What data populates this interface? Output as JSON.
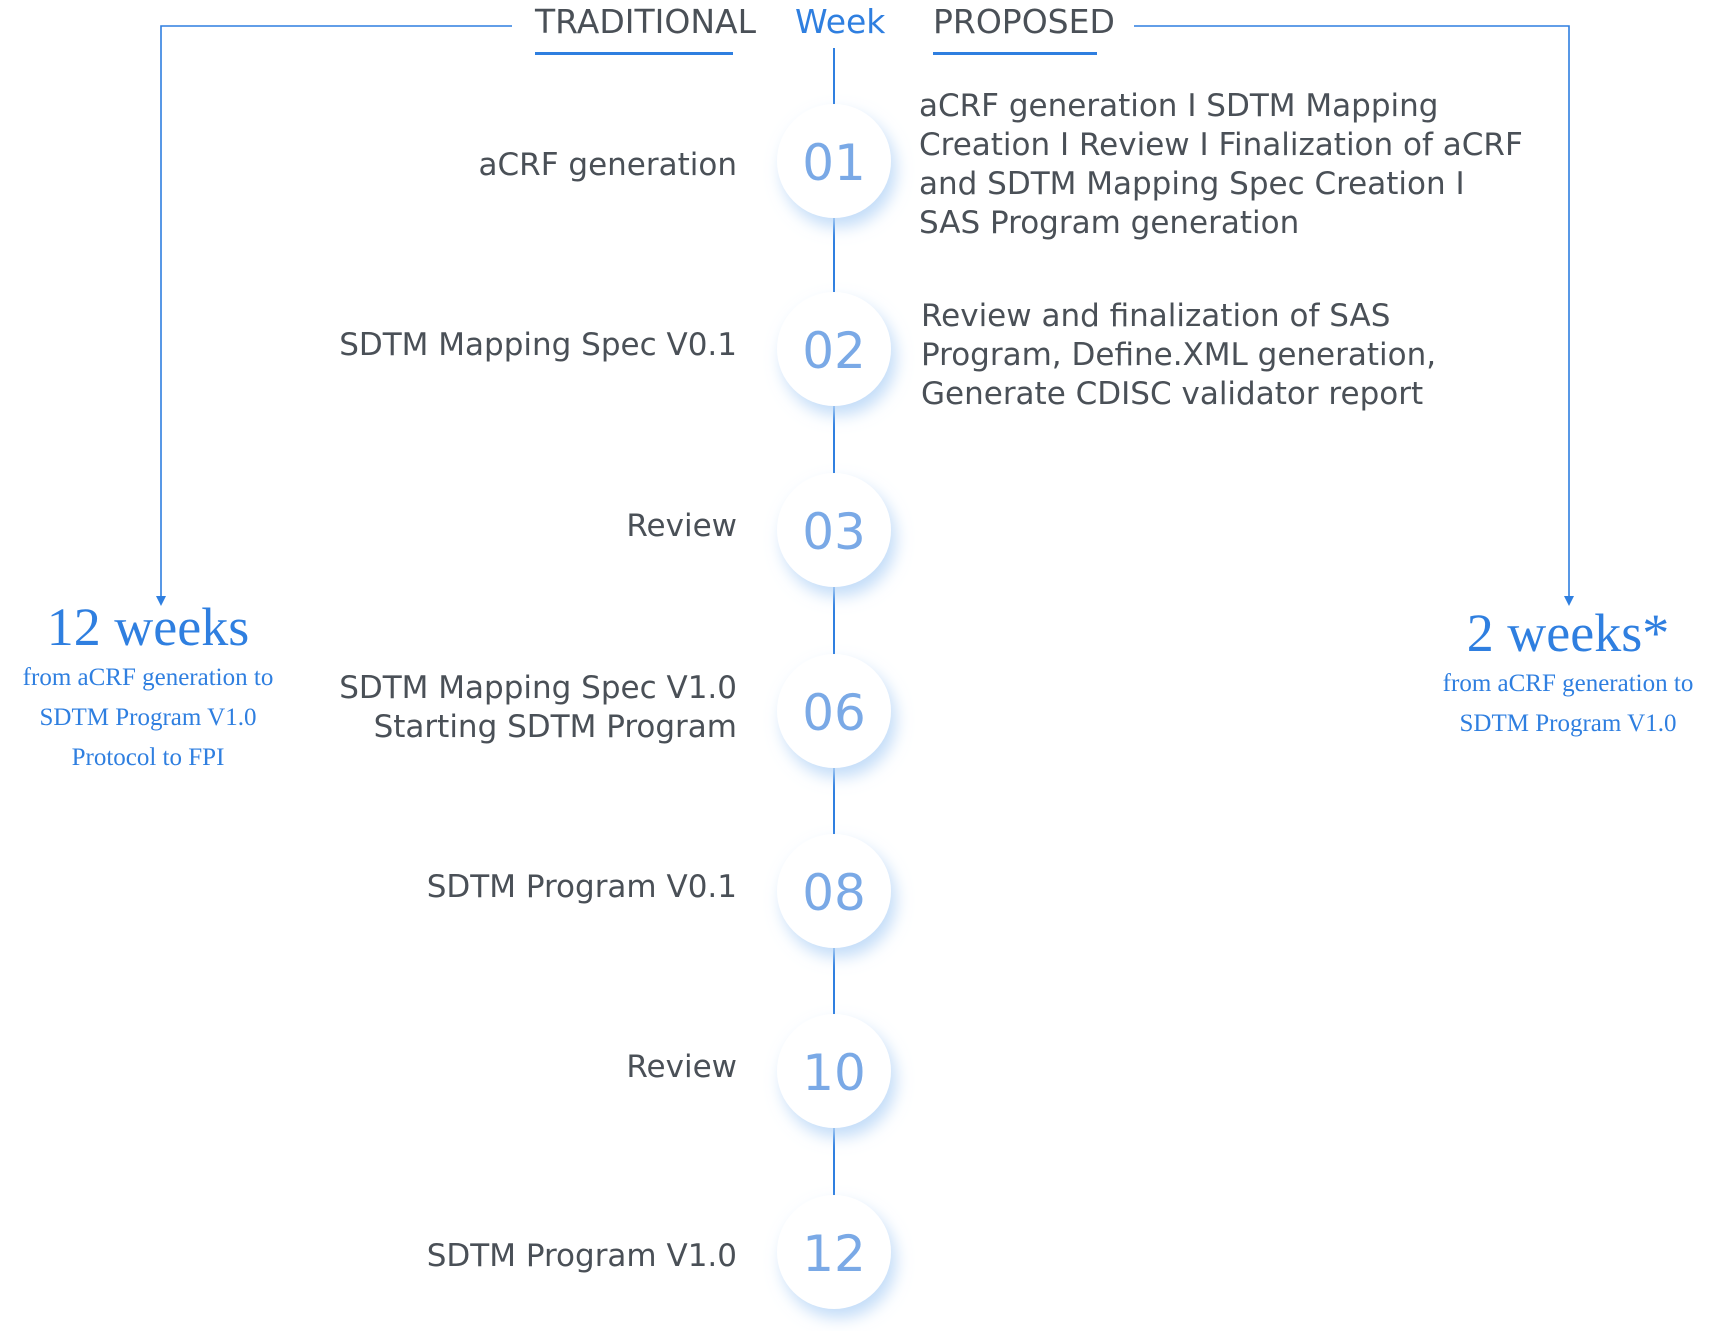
{
  "header": {
    "traditional_label": "TRADITIONAL",
    "week_label": "Week",
    "proposed_label": "PROPOSED"
  },
  "colors": {
    "accent": "#2f7fe0",
    "number": "#7aa9e6",
    "text": "#4a5057",
    "circle_glow": "#d6e8fb"
  },
  "weeks": [
    {
      "number": "01",
      "traditional": [
        "aCRF generation"
      ],
      "proposed": [
        "aCRF generation I SDTM Mapping",
        "Creation I Review I Finalization of aCRF",
        "and SDTM Mapping Spec Creation I",
        "SAS Program generation"
      ]
    },
    {
      "number": "02",
      "traditional": [
        "SDTM Mapping Spec V0.1"
      ],
      "proposed": [
        "Review and finalization of SAS",
        "Program, Define.XML generation,",
        "Generate CDISC validator report"
      ]
    },
    {
      "number": "03",
      "traditional": [
        "Review"
      ],
      "proposed": []
    },
    {
      "number": "06",
      "traditional": [
        "SDTM Mapping Spec V1.0",
        "Starting SDTM Program"
      ],
      "proposed": []
    },
    {
      "number": "08",
      "traditional": [
        "SDTM Program V0.1"
      ],
      "proposed": []
    },
    {
      "number": "10",
      "traditional": [
        "Review"
      ],
      "proposed": []
    },
    {
      "number": "12",
      "traditional": [
        "SDTM Program V1.0"
      ],
      "proposed": []
    }
  ],
  "traditional_summary": {
    "duration": "12 weeks",
    "lines": [
      "from aCRF generation to",
      "SDTM Program V1.0",
      "Protocol to FPI"
    ]
  },
  "proposed_summary": {
    "duration": "2 weeks*",
    "lines": [
      "from aCRF generation to",
      "SDTM Program V1.0"
    ]
  }
}
